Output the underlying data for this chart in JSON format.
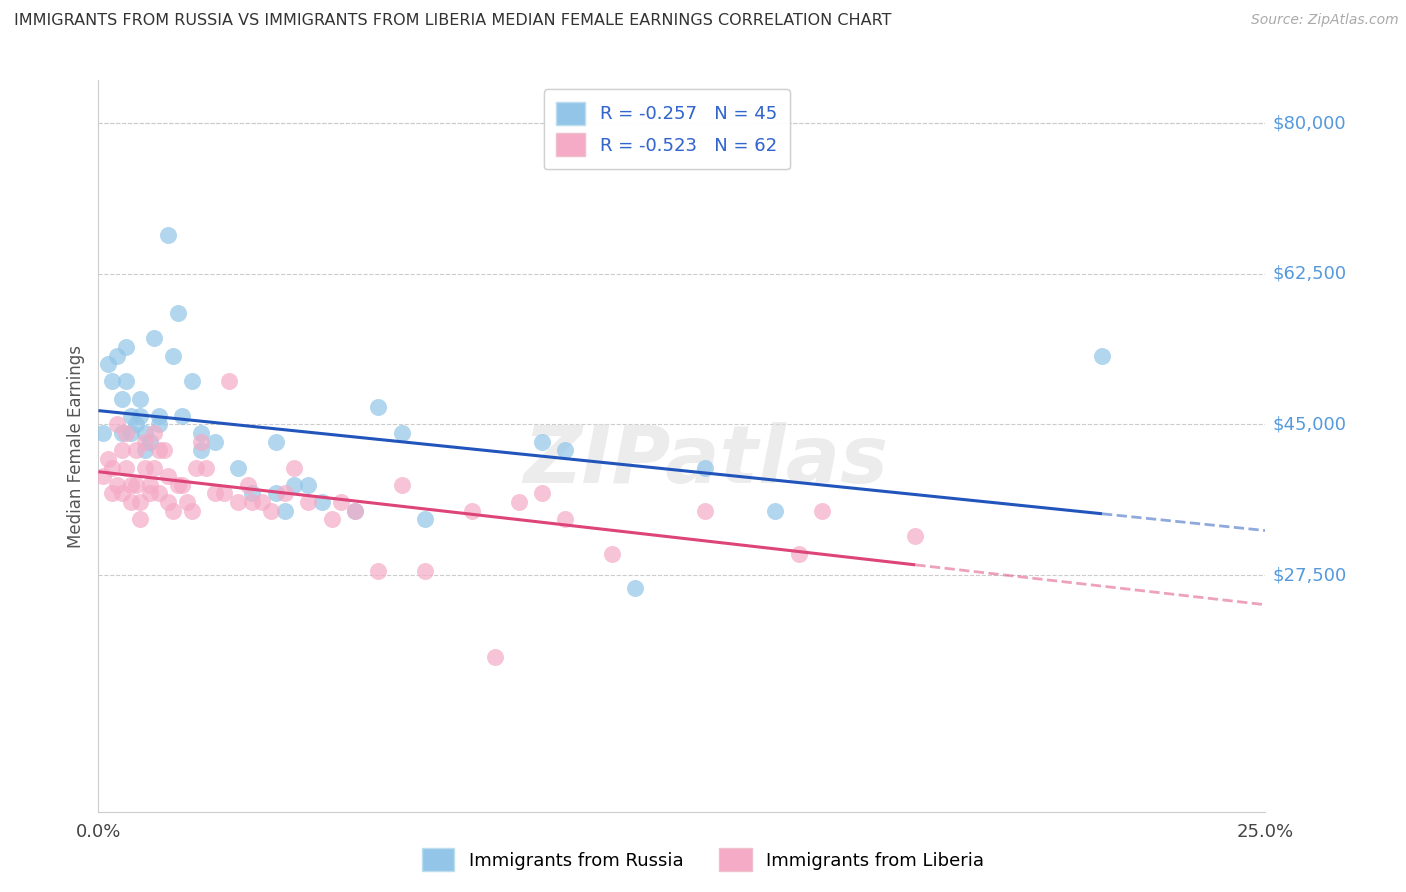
{
  "title": "IMMIGRANTS FROM RUSSIA VS IMMIGRANTS FROM LIBERIA MEDIAN FEMALE EARNINGS CORRELATION CHART",
  "source": "Source: ZipAtlas.com",
  "ylabel": "Median Female Earnings",
  "xlim": [
    0.0,
    0.25
  ],
  "ylim": [
    0,
    85000
  ],
  "ytick_vals": [
    27500,
    45000,
    62500,
    80000
  ],
  "ytick_labels": [
    "$27,500",
    "$45,000",
    "$62,500",
    "$80,000"
  ],
  "xticks": [
    0.0,
    0.05,
    0.1,
    0.15,
    0.2,
    0.25
  ],
  "xtick_labels": [
    "0.0%",
    "",
    "",
    "",
    "",
    "25.0%"
  ],
  "russia_color": "#92c5e8",
  "liberia_color": "#f5aac5",
  "russia_line_color": "#2255bb",
  "liberia_line_color": "#dd4477",
  "ytick_color": "#5599dd",
  "background_color": "#ffffff",
  "watermark": "ZIPatlas",
  "legend_russia": "R = -0.257   N = 45",
  "legend_liberia": "R = -0.523   N = 62",
  "legend_label_russia": "Immigrants from Russia",
  "legend_label_liberia": "Immigrants from Liberia",
  "russia_scatter_x": [
    0.001,
    0.002,
    0.003,
    0.004,
    0.005,
    0.005,
    0.006,
    0.006,
    0.007,
    0.007,
    0.008,
    0.009,
    0.009,
    0.01,
    0.01,
    0.011,
    0.012,
    0.013,
    0.013,
    0.015,
    0.016,
    0.017,
    0.018,
    0.02,
    0.022,
    0.022,
    0.025,
    0.03,
    0.033,
    0.038,
    0.038,
    0.04,
    0.042,
    0.045,
    0.048,
    0.055,
    0.06,
    0.065,
    0.07,
    0.095,
    0.1,
    0.115,
    0.13,
    0.145,
    0.215
  ],
  "russia_scatter_y": [
    44000,
    52000,
    50000,
    53000,
    48000,
    44000,
    54000,
    50000,
    46000,
    44000,
    45000,
    48000,
    46000,
    44000,
    42000,
    43000,
    55000,
    46000,
    45000,
    67000,
    53000,
    58000,
    46000,
    50000,
    42000,
    44000,
    43000,
    40000,
    37000,
    43000,
    37000,
    35000,
    38000,
    38000,
    36000,
    35000,
    47000,
    44000,
    34000,
    43000,
    42000,
    26000,
    40000,
    35000,
    53000
  ],
  "liberia_scatter_x": [
    0.001,
    0.002,
    0.003,
    0.003,
    0.004,
    0.004,
    0.005,
    0.005,
    0.006,
    0.006,
    0.007,
    0.007,
    0.008,
    0.008,
    0.009,
    0.009,
    0.01,
    0.01,
    0.011,
    0.011,
    0.012,
    0.012,
    0.013,
    0.013,
    0.014,
    0.015,
    0.015,
    0.016,
    0.017,
    0.018,
    0.019,
    0.02,
    0.021,
    0.022,
    0.023,
    0.025,
    0.027,
    0.028,
    0.03,
    0.032,
    0.033,
    0.035,
    0.037,
    0.04,
    0.042,
    0.045,
    0.05,
    0.052,
    0.055,
    0.06,
    0.065,
    0.07,
    0.08,
    0.085,
    0.09,
    0.095,
    0.1,
    0.11,
    0.13,
    0.15,
    0.155,
    0.175
  ],
  "liberia_scatter_y": [
    39000,
    41000,
    40000,
    37000,
    38000,
    45000,
    42000,
    37000,
    44000,
    40000,
    36000,
    38000,
    42000,
    38000,
    36000,
    34000,
    43000,
    40000,
    38000,
    37000,
    44000,
    40000,
    42000,
    37000,
    42000,
    39000,
    36000,
    35000,
    38000,
    38000,
    36000,
    35000,
    40000,
    43000,
    40000,
    37000,
    37000,
    50000,
    36000,
    38000,
    36000,
    36000,
    35000,
    37000,
    40000,
    36000,
    34000,
    36000,
    35000,
    28000,
    38000,
    28000,
    35000,
    18000,
    36000,
    37000,
    34000,
    30000,
    35000,
    30000,
    35000,
    32000
  ]
}
